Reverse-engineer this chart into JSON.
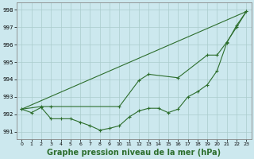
{
  "xlabel": "Graphe pression niveau de la mer (hPa)",
  "xlabel_fontsize": 7,
  "background_color": "#cce8ee",
  "grid_color": "#aacccc",
  "line_color": "#2d6e2d",
  "ylim": [
    990.6,
    998.4
  ],
  "xlim": [
    -0.5,
    23.5
  ],
  "yticks": [
    991,
    992,
    993,
    994,
    995,
    996,
    997,
    998
  ],
  "xticks": [
    0,
    1,
    2,
    3,
    4,
    5,
    6,
    7,
    8,
    9,
    10,
    11,
    12,
    13,
    14,
    15,
    16,
    17,
    18,
    19,
    20,
    21,
    22,
    23
  ],
  "series_wavy": {
    "x": [
      0,
      1,
      2,
      3,
      4,
      5,
      6,
      7,
      8,
      9,
      10,
      11,
      12,
      13,
      14,
      15,
      16,
      17,
      18,
      19,
      20,
      21,
      22,
      23
    ],
    "y": [
      992.3,
      992.1,
      992.4,
      991.75,
      991.75,
      991.75,
      991.55,
      991.35,
      991.1,
      991.2,
      991.35,
      991.85,
      992.2,
      992.35,
      992.35,
      992.1,
      992.3,
      993.0,
      993.3,
      993.7,
      994.5,
      996.1,
      997.1,
      997.9
    ]
  },
  "series_upper": {
    "x": [
      0,
      2,
      3,
      10,
      12,
      13,
      16,
      19,
      20,
      21,
      22,
      23
    ],
    "y": [
      992.3,
      992.45,
      992.45,
      992.45,
      993.95,
      994.3,
      994.1,
      995.4,
      995.4,
      996.15,
      997.0,
      997.9
    ]
  },
  "series_straight": {
    "x": [
      0,
      23
    ],
    "y": [
      992.3,
      997.9
    ]
  }
}
